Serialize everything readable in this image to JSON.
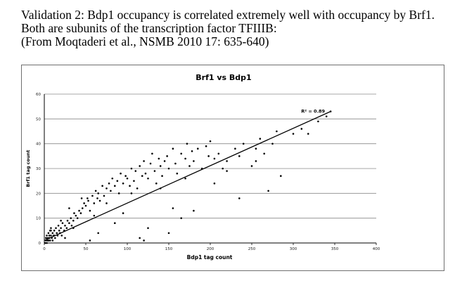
{
  "caption": {
    "line1": "Validation 2:  Bdp1 occupancy is correlated extremely well with occupancy by Brf1.",
    "line2": "Both are subunits of the transcription factor TFIIIB:",
    "line3": "(From Moqtaderi et al., NSMB 2010 17: 635-640)"
  },
  "chart_data": {
    "type": "scatter",
    "title": "Brf1 vs Bdp1",
    "xlabel": "Bdp1 tag count",
    "ylabel": "Brf1 tag count",
    "xlim": [
      0,
      400
    ],
    "ylim": [
      0,
      60
    ],
    "xticks": [
      0,
      50,
      100,
      150,
      200,
      250,
      300,
      350,
      400
    ],
    "yticks": [
      0,
      10,
      20,
      30,
      40,
      50,
      60
    ],
    "grid": "horizontal",
    "legend": "none",
    "trendline": {
      "type": "linear",
      "x": [
        0,
        345
      ],
      "y": [
        1,
        53
      ],
      "label": "R² = 0.89"
    },
    "series": [
      {
        "x": [
          1,
          2,
          2,
          3,
          3,
          4,
          4,
          5,
          5,
          6,
          6,
          7,
          7,
          8,
          8,
          9,
          10,
          10,
          11,
          12,
          13,
          14,
          15,
          16,
          17,
          18,
          19,
          20,
          21,
          22,
          24,
          25,
          27,
          28,
          30,
          32,
          33,
          35,
          36,
          38,
          40,
          42,
          44,
          46,
          48,
          50,
          52,
          53,
          55,
          58,
          60,
          62,
          64,
          65,
          67,
          70,
          72,
          75,
          78,
          80,
          82,
          85,
          88,
          90,
          92,
          95,
          98,
          100,
          103,
          105,
          108,
          110,
          112,
          115,
          118,
          120,
          122,
          125,
          128,
          130,
          133,
          135,
          138,
          140,
          142,
          145,
          148,
          150,
          155,
          158,
          160,
          165,
          170,
          172,
          175,
          178,
          180,
          185,
          190,
          195,
          198,
          200,
          205,
          210,
          215,
          220,
          230,
          235,
          240,
          250,
          255,
          260,
          265,
          275,
          280,
          300,
          310,
          318,
          330,
          340,
          345,
          8,
          12,
          20,
          25,
          30,
          35,
          45,
          55,
          60,
          65,
          75,
          85,
          95,
          105,
          115,
          120,
          125,
          140,
          150,
          155,
          165,
          170,
          180,
          205,
          220,
          235,
          255,
          270,
          285
        ],
        "y": [
          0,
          1,
          2,
          0,
          3,
          1,
          2,
          4,
          1,
          3,
          2,
          5,
          1,
          3,
          6,
          2,
          4,
          1,
          3,
          5,
          2,
          6,
          4,
          3,
          7,
          5,
          4,
          6,
          3,
          8,
          5,
          7,
          6,
          9,
          8,
          10,
          7,
          9,
          12,
          11,
          10,
          13,
          12,
          14,
          16,
          15,
          18,
          17,
          13,
          19,
          16,
          21,
          18,
          20,
          17,
          23,
          19,
          22,
          24,
          21,
          26,
          23,
          25,
          20,
          28,
          24,
          27,
          26,
          23,
          30,
          25,
          29,
          22,
          31,
          27,
          33,
          28,
          26,
          32,
          36,
          29,
          24,
          34,
          31,
          27,
          33,
          35,
          30,
          38,
          32,
          28,
          36,
          34,
          40,
          31,
          37,
          33,
          38,
          30,
          39,
          35,
          41,
          34,
          36,
          30,
          33,
          38,
          35,
          40,
          31,
          38,
          42,
          36,
          40,
          45,
          44,
          46,
          44,
          49,
          51,
          53,
          5,
          3,
          9,
          2,
          14,
          6,
          18,
          1,
          11,
          4,
          16,
          8,
          12,
          20,
          2,
          1,
          6,
          22,
          4,
          14,
          10,
          26,
          13,
          24,
          29,
          18,
          33,
          21,
          27
        ]
      }
    ]
  }
}
